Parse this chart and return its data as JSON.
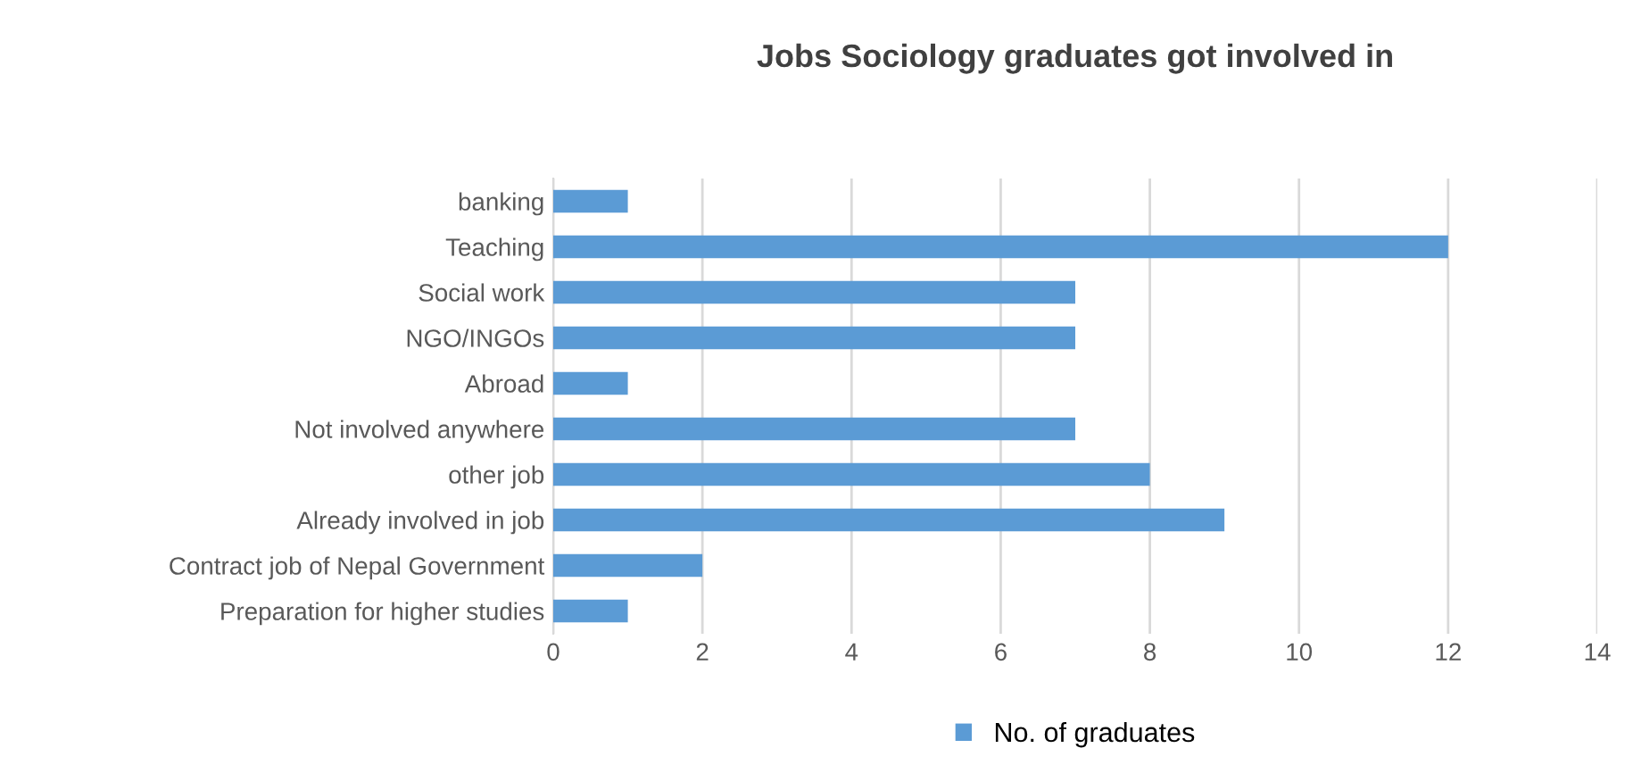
{
  "chart_data": {
    "type": "bar",
    "orientation": "horizontal",
    "title": "Jobs Sociology graduates got involved in",
    "categories": [
      "banking",
      "Teaching",
      "Social work",
      "NGO/INGOs",
      "Abroad",
      "Not involved anywhere",
      "other job",
      "Already involved in job",
      "Contract job of Nepal Government",
      "Preparation for higher studies"
    ],
    "series": [
      {
        "name": "No. of graduates",
        "color": "#5b9bd5",
        "values": [
          1,
          12,
          7,
          7,
          1,
          7,
          8,
          9,
          2,
          1
        ]
      }
    ],
    "xlim": [
      0,
      14
    ],
    "xticks": [
      0,
      2,
      4,
      6,
      8,
      10,
      12,
      14
    ],
    "grid": "x",
    "legend": "bottom"
  }
}
